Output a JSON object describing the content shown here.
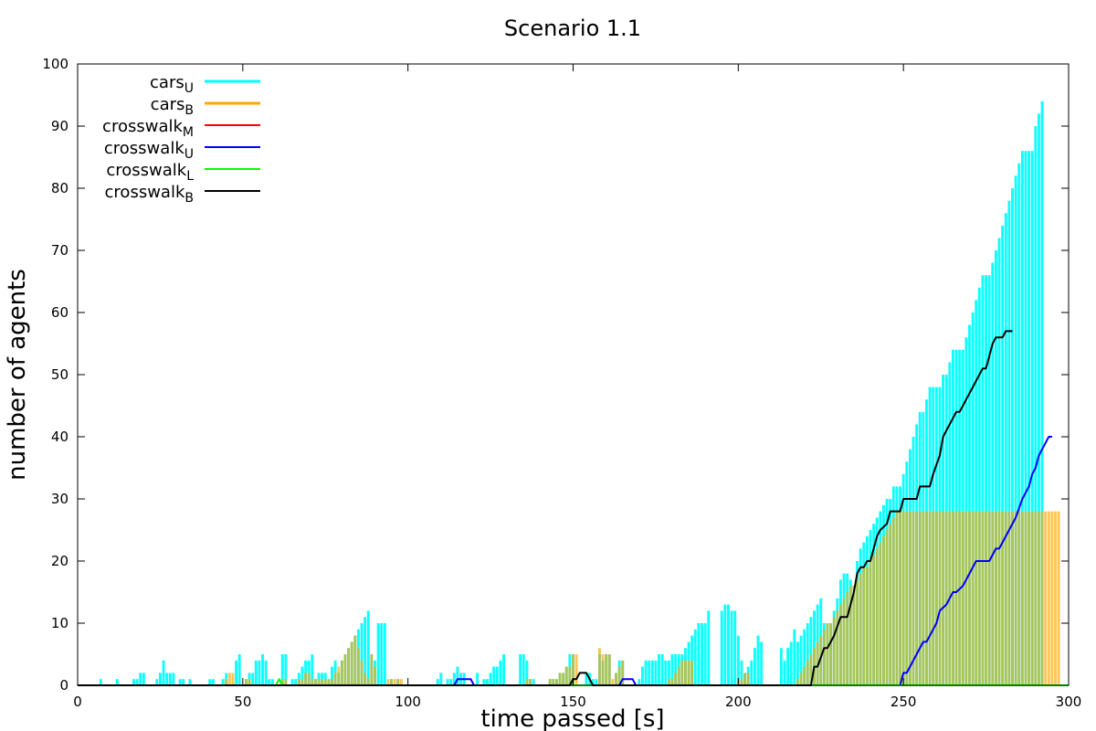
{
  "chart_data": {
    "type": "bar",
    "title": "Scenario 1.1",
    "xlabel": "time passed [s]",
    "ylabel": "number of agents",
    "xlim": [
      0,
      300
    ],
    "ylim": [
      0,
      100
    ],
    "xticks": [
      0,
      50,
      100,
      150,
      200,
      250,
      300
    ],
    "yticks": [
      0,
      10,
      20,
      30,
      40,
      50,
      60,
      70,
      80,
      90,
      100
    ],
    "grid": false,
    "legend_position": "top-left",
    "bar_step": 1,
    "series": [
      {
        "name": "cars",
        "subscript": "U",
        "kind": "bar",
        "color": "#00ffff",
        "values": [
          0,
          0,
          0,
          0,
          0,
          0,
          0,
          1,
          0,
          0,
          0,
          0,
          1,
          0,
          0,
          0,
          0,
          1,
          1,
          2,
          2,
          0,
          0,
          0,
          1,
          2,
          4,
          2,
          2,
          2,
          0,
          1,
          1,
          0,
          1,
          0,
          0,
          0,
          0,
          0,
          1,
          1,
          0,
          0,
          1,
          2,
          0,
          0,
          4,
          5,
          0,
          1,
          2,
          2,
          4,
          4,
          5,
          4,
          1,
          1,
          0,
          0,
          5,
          5,
          0,
          1,
          1,
          2,
          3,
          4,
          4,
          5,
          1,
          2,
          2,
          2,
          1,
          3,
          4,
          2,
          4,
          5,
          6,
          7,
          8,
          9,
          10,
          11,
          12,
          5,
          4,
          10,
          10,
          10,
          0,
          1,
          0,
          1,
          0,
          0,
          0,
          0,
          0,
          0,
          0,
          0,
          0,
          0,
          0,
          1,
          2,
          0,
          1,
          1,
          2,
          3,
          2,
          2,
          0,
          0,
          0,
          2,
          0,
          1,
          1,
          2,
          3,
          3,
          4,
          5,
          0,
          0,
          0,
          0,
          5,
          5,
          4,
          1,
          1,
          0,
          0,
          0,
          0,
          1,
          1,
          1,
          2,
          2,
          3,
          5,
          5,
          0,
          0,
          0,
          2,
          2,
          1,
          1,
          5,
          4,
          5,
          5,
          0,
          2,
          4,
          4,
          0,
          0,
          0,
          0,
          1,
          3,
          4,
          4,
          4,
          4,
          5,
          5,
          4,
          4,
          5,
          5,
          5,
          5,
          6,
          7,
          8,
          9,
          10,
          10,
          10,
          12,
          0,
          0,
          0,
          12,
          13,
          13,
          12,
          12,
          8,
          4,
          2,
          3,
          4,
          6,
          8,
          7,
          0,
          0,
          0,
          0,
          0,
          6,
          4,
          6,
          7,
          9,
          7,
          8,
          9,
          10,
          11,
          12,
          13,
          14,
          10,
          10,
          10,
          12,
          14,
          17,
          18,
          18,
          17,
          16,
          20,
          22,
          23,
          24,
          25,
          26,
          27,
          28,
          29,
          30,
          30,
          32,
          32,
          32,
          34,
          36,
          38,
          40,
          42,
          44,
          44,
          46,
          48,
          48,
          48,
          48,
          50,
          50,
          52,
          54,
          54,
          54,
          54,
          56,
          58,
          60,
          62,
          64,
          66,
          66,
          66,
          68,
          70,
          72,
          74,
          76,
          78,
          80,
          82,
          84,
          86,
          86,
          86,
          86,
          90,
          92,
          94
        ]
      },
      {
        "name": "cars",
        "subscript": "B",
        "kind": "bar",
        "color": "#ffa500",
        "values": [
          0,
          0,
          0,
          0,
          0,
          0,
          0,
          0,
          0,
          0,
          0,
          0,
          0,
          0,
          0,
          0,
          0,
          0,
          0,
          0,
          0,
          0,
          0,
          0,
          0,
          0,
          0,
          0,
          0,
          0,
          0,
          0,
          0,
          0,
          0,
          0,
          0,
          0,
          0,
          0,
          0,
          0,
          0,
          0,
          0,
          1,
          2,
          2,
          0,
          0,
          0,
          1,
          1,
          0,
          0,
          0,
          0,
          0,
          0,
          0,
          0,
          0,
          1,
          1,
          0,
          0,
          0,
          1,
          1,
          2,
          2,
          1,
          1,
          1,
          1,
          1,
          1,
          1,
          2,
          3,
          4,
          5,
          6,
          7,
          8,
          6,
          4,
          2,
          1,
          5,
          3,
          0,
          0,
          0,
          1,
          1,
          1,
          1,
          1,
          0,
          0,
          0,
          0,
          0,
          0,
          0,
          0,
          0,
          0,
          0,
          0,
          0,
          0,
          0,
          0,
          0,
          0,
          0,
          0,
          0,
          0,
          0,
          0,
          0,
          0,
          0,
          0,
          0,
          0,
          0,
          0,
          0,
          0,
          0,
          0,
          0,
          1,
          1,
          0,
          0,
          0,
          0,
          0,
          1,
          1,
          1,
          2,
          2,
          3,
          3,
          5,
          5,
          0,
          0,
          0,
          0,
          0,
          0,
          6,
          5,
          5,
          5,
          1,
          2,
          3,
          4,
          0,
          0,
          0,
          0,
          0,
          0,
          0,
          0,
          0,
          0,
          0,
          0,
          0,
          1,
          1,
          2,
          3,
          4,
          4,
          4,
          4,
          0,
          0,
          0,
          0,
          0,
          0,
          0,
          0,
          0,
          0,
          0,
          0,
          0,
          1,
          1,
          2,
          2,
          0,
          0,
          0,
          0,
          0,
          0,
          0,
          0,
          0,
          0,
          0,
          0,
          0,
          0,
          1,
          2,
          3,
          4,
          5,
          6,
          7,
          8,
          9,
          10,
          10,
          11,
          12,
          13,
          14,
          15,
          16,
          16,
          17,
          18,
          19,
          19,
          20,
          21,
          22,
          23,
          24,
          25,
          26,
          27,
          28,
          28,
          28,
          28,
          28,
          28,
          28,
          28,
          28,
          28,
          28,
          28,
          28,
          28,
          28,
          28,
          28,
          28,
          28,
          28,
          28,
          28,
          28,
          28,
          28,
          28,
          28,
          28,
          28,
          28,
          28,
          28,
          28,
          28,
          28,
          28,
          28,
          28,
          28,
          28,
          28,
          28,
          28,
          28,
          28,
          28,
          28,
          28,
          28,
          28
        ]
      },
      {
        "name": "crosswalk",
        "subscript": "M",
        "kind": "line",
        "color": "#ff0000",
        "points": [
          [
            0,
            0
          ],
          [
            300,
            0
          ]
        ]
      },
      {
        "name": "crosswalk",
        "subscript": "U",
        "kind": "line",
        "color": "#0000ff",
        "points": [
          [
            0,
            0
          ],
          [
            114,
            0
          ],
          [
            115,
            1
          ],
          [
            119,
            1
          ],
          [
            120,
            0
          ],
          [
            164,
            0
          ],
          [
            165,
            1
          ],
          [
            168,
            1
          ],
          [
            169,
            0
          ],
          [
            249,
            0
          ],
          [
            250,
            2
          ],
          [
            251,
            2
          ],
          [
            254,
            5
          ],
          [
            256,
            7
          ],
          [
            257,
            7
          ],
          [
            259,
            9
          ],
          [
            260,
            10
          ],
          [
            261,
            12
          ],
          [
            263,
            13
          ],
          [
            265,
            15
          ],
          [
            266,
            15
          ],
          [
            268,
            16
          ],
          [
            270,
            18
          ],
          [
            272,
            20
          ],
          [
            276,
            20
          ],
          [
            278,
            22
          ],
          [
            279,
            22
          ],
          [
            282,
            25
          ],
          [
            284,
            27
          ],
          [
            286,
            30
          ],
          [
            287,
            31
          ],
          [
            288,
            32
          ],
          [
            289,
            34
          ],
          [
            290,
            35
          ],
          [
            291,
            37
          ],
          [
            293,
            39
          ],
          [
            294,
            40
          ],
          [
            295,
            40
          ]
        ]
      },
      {
        "name": "crosswalk",
        "subscript": "L",
        "kind": "line",
        "color": "#00ff00",
        "points": [
          [
            0,
            0
          ],
          [
            60,
            0
          ],
          [
            61,
            1
          ],
          [
            62,
            0
          ],
          [
            300,
            0
          ]
        ]
      },
      {
        "name": "crosswalk",
        "subscript": "B",
        "kind": "line",
        "color": "#000000",
        "points": [
          [
            0,
            0
          ],
          [
            149,
            0
          ],
          [
            150,
            1
          ],
          [
            151,
            1
          ],
          [
            152,
            2
          ],
          [
            154,
            2
          ],
          [
            155,
            1
          ],
          [
            156,
            0
          ],
          [
            222,
            0
          ],
          [
            223,
            3
          ],
          [
            224,
            3
          ],
          [
            226,
            6
          ],
          [
            227,
            6
          ],
          [
            229,
            8
          ],
          [
            231,
            11
          ],
          [
            233,
            11
          ],
          [
            235,
            15
          ],
          [
            236,
            18
          ],
          [
            237,
            19
          ],
          [
            238,
            19
          ],
          [
            239,
            20
          ],
          [
            240,
            20
          ],
          [
            242,
            24
          ],
          [
            243,
            25
          ],
          [
            245,
            26
          ],
          [
            246,
            28
          ],
          [
            249,
            28
          ],
          [
            250,
            30
          ],
          [
            254,
            30
          ],
          [
            255,
            32
          ],
          [
            258,
            32
          ],
          [
            259,
            34
          ],
          [
            261,
            37
          ],
          [
            262,
            40
          ],
          [
            263,
            41
          ],
          [
            264,
            42
          ],
          [
            266,
            44
          ],
          [
            267,
            44
          ],
          [
            268,
            45
          ],
          [
            269,
            46
          ],
          [
            271,
            48
          ],
          [
            273,
            50
          ],
          [
            274,
            51
          ],
          [
            275,
            51
          ],
          [
            277,
            55
          ],
          [
            278,
            56
          ],
          [
            280,
            56
          ],
          [
            281,
            57
          ],
          [
            283,
            57
          ]
        ]
      }
    ]
  }
}
